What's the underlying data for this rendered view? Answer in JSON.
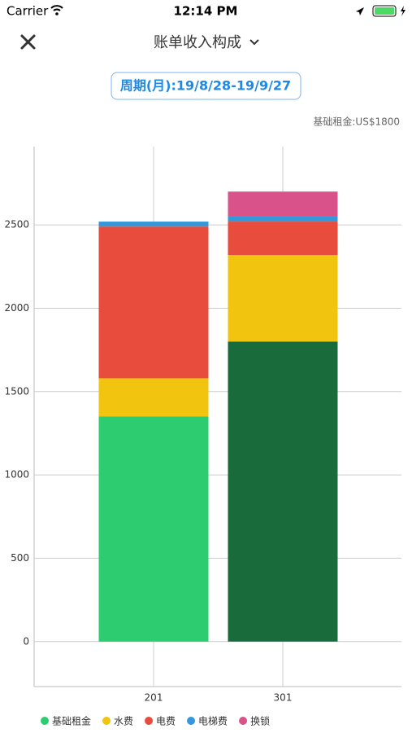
{
  "status_bar": {
    "carrier": "Carrier",
    "time": "12:14 PM"
  },
  "header": {
    "title": "账单收入构成",
    "period": "周期(月):19/8/28-19/9/27"
  },
  "chart_data": {
    "type": "stacked-bar",
    "annotation": "基础租金:US$1800",
    "categories": [
      "201",
      "301"
    ],
    "series": [
      {
        "name": "基础租金",
        "color": "#2ecc71",
        "colors": [
          "#2ecc71",
          "#1a6b3c"
        ],
        "values": [
          1350,
          1800
        ]
      },
      {
        "name": "水费",
        "color": "#f1c40f",
        "values": [
          230,
          520
        ]
      },
      {
        "name": "电费",
        "color": "#e74c3c",
        "values": [
          910,
          200
        ]
      },
      {
        "name": "电梯费",
        "color": "#3498db",
        "values": [
          30,
          30
        ]
      },
      {
        "name": "换锁",
        "color": "#d9528a",
        "values": [
          null,
          150
        ]
      }
    ],
    "ylim": [
      -270,
      2970
    ],
    "yticks": [
      0,
      500,
      1000,
      1500,
      2000,
      2500
    ],
    "grid": true
  }
}
